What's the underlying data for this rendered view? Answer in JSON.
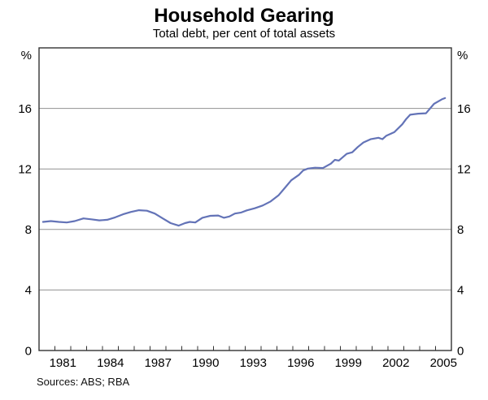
{
  "page": {
    "background": "#ffffff"
  },
  "chart_data": {
    "type": "line",
    "title": "Household Gearing",
    "subtitle": "Total debt, per cent of total assets",
    "source": "Sources: ABS; RBA",
    "legend": "none",
    "grid": "horizontal-only",
    "y_axis": {
      "unit": "%",
      "min": 0,
      "max": 20,
      "tick_labels": [
        0,
        4,
        8,
        12,
        16
      ],
      "gridline_values": [
        4,
        8,
        12,
        16
      ],
      "labels_both_sides": true
    },
    "x_axis": {
      "domain_start": 1979.5,
      "domain_end": 2005.5,
      "minor_tick_start": 1980.5,
      "minor_tick_step": 1,
      "minor_tick_count": 25,
      "label_years": [
        1981,
        1984,
        1987,
        1990,
        1993,
        1996,
        1999,
        2002,
        2005
      ]
    },
    "series": [
      {
        "name": "Household gearing (total debt, per cent of total assets)",
        "color": "#6373b7",
        "points": [
          [
            1979.75,
            8.5
          ],
          [
            1980.25,
            8.55
          ],
          [
            1980.75,
            8.5
          ],
          [
            1981.25,
            8.46
          ],
          [
            1981.75,
            8.55
          ],
          [
            1982.3,
            8.73
          ],
          [
            1982.8,
            8.67
          ],
          [
            1983.3,
            8.6
          ],
          [
            1983.8,
            8.64
          ],
          [
            1984.3,
            8.8
          ],
          [
            1984.8,
            9.0
          ],
          [
            1985.3,
            9.16
          ],
          [
            1985.8,
            9.27
          ],
          [
            1986.3,
            9.24
          ],
          [
            1986.8,
            9.05
          ],
          [
            1987.3,
            8.73
          ],
          [
            1987.8,
            8.42
          ],
          [
            1988.3,
            8.25
          ],
          [
            1988.7,
            8.42
          ],
          [
            1989.0,
            8.5
          ],
          [
            1989.35,
            8.46
          ],
          [
            1989.8,
            8.77
          ],
          [
            1990.3,
            8.9
          ],
          [
            1990.8,
            8.92
          ],
          [
            1991.15,
            8.77
          ],
          [
            1991.5,
            8.86
          ],
          [
            1991.85,
            9.05
          ],
          [
            1992.25,
            9.12
          ],
          [
            1992.6,
            9.26
          ],
          [
            1993.1,
            9.4
          ],
          [
            1993.6,
            9.58
          ],
          [
            1994.1,
            9.85
          ],
          [
            1994.6,
            10.25
          ],
          [
            1995.0,
            10.75
          ],
          [
            1995.4,
            11.25
          ],
          [
            1995.9,
            11.62
          ],
          [
            1996.15,
            11.9
          ],
          [
            1996.45,
            12.02
          ],
          [
            1996.9,
            12.08
          ],
          [
            1997.4,
            12.06
          ],
          [
            1997.9,
            12.35
          ],
          [
            1998.15,
            12.6
          ],
          [
            1998.4,
            12.55
          ],
          [
            1998.9,
            13.0
          ],
          [
            1999.25,
            13.1
          ],
          [
            1999.6,
            13.45
          ],
          [
            1999.95,
            13.75
          ],
          [
            2000.4,
            13.96
          ],
          [
            2000.9,
            14.06
          ],
          [
            2001.15,
            13.97
          ],
          [
            2001.4,
            14.2
          ],
          [
            2001.9,
            14.43
          ],
          [
            2002.4,
            14.95
          ],
          [
            2002.65,
            15.3
          ],
          [
            2002.9,
            15.58
          ],
          [
            2003.4,
            15.65
          ],
          [
            2003.9,
            15.68
          ],
          [
            2004.4,
            16.3
          ],
          [
            2004.9,
            16.6
          ],
          [
            2005.1,
            16.68
          ]
        ]
      }
    ],
    "colors": {
      "line": "#6373b7",
      "gridline": "#909090",
      "frame": "#333333",
      "text": "#000000",
      "background": "#ffffff"
    }
  }
}
